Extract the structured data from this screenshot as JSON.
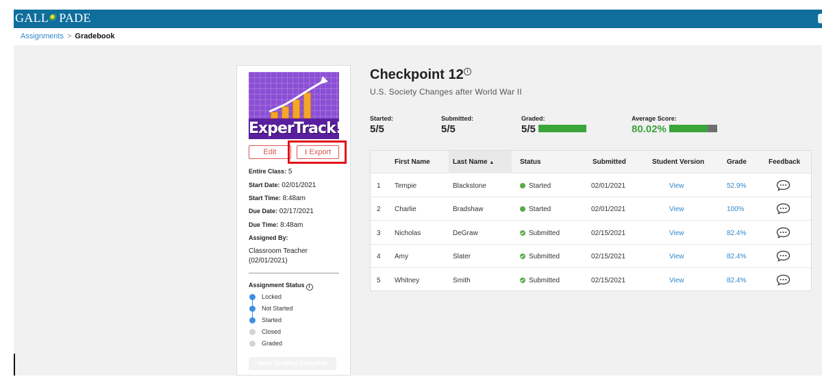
{
  "header": {
    "logo_text": "GALL",
    "logo_text_after": "PADE"
  },
  "breadcrumb": {
    "link": "Assignments",
    "separator": ">",
    "current": "Gradebook"
  },
  "assignment_card": {
    "cover_title": "ExperTrack!",
    "edit_label": "Edit",
    "export_label": "Export",
    "entire_class_label": "Entire Class:",
    "entire_class_value": "5",
    "start_date_label": "Start Date:",
    "start_date_value": "02/01/2021",
    "start_time_label": "Start Time:",
    "start_time_value": "8:48am",
    "due_date_label": "Due Date:",
    "due_date_value": "02/17/2021",
    "due_time_label": "Due Time:",
    "due_time_value": "8:48am",
    "assigned_by_label": "Assigned By:",
    "assigned_by_line1": "Classroom Teacher",
    "assigned_by_line2": "(02/01/2021)",
    "status_heading": "Assignment Status",
    "status_steps": [
      {
        "label": "Locked",
        "active": true
      },
      {
        "label": "Not Started",
        "active": true
      },
      {
        "label": "Started",
        "active": true
      },
      {
        "label": "Closed",
        "active": false
      },
      {
        "label": "Graded",
        "active": false
      }
    ],
    "complete_button_label": "Mark Grading Complete"
  },
  "main": {
    "title": "Checkpoint 12",
    "subtitle": "U.S. Society Changes after World War II",
    "stats": {
      "started_label": "Started:",
      "started_value": "5/5",
      "submitted_label": "Submitted:",
      "submitted_value": "5/5",
      "graded_label": "Graded:",
      "graded_value": "5/5",
      "graded_fraction": 1.0,
      "average_label": "Average Score:",
      "average_value": "80.02%",
      "average_fraction": 0.8002
    }
  },
  "table": {
    "columns": {
      "first_name": "First Name",
      "last_name": "Last Name",
      "status": "Status",
      "submitted": "Submitted",
      "student_version": "Student Version",
      "grade": "Grade",
      "feedback": "Feedback"
    },
    "sort_indicator": "▲",
    "rows": [
      {
        "index": "1",
        "first": "Tempie",
        "last": "Blackstone",
        "status": "Started",
        "submitted": "02/01/2021",
        "view": "View",
        "grade": "52.9%"
      },
      {
        "index": "2",
        "first": "Charlie",
        "last": "Bradshaw",
        "status": "Started",
        "submitted": "02/01/2021",
        "view": "View",
        "grade": "100%"
      },
      {
        "index": "3",
        "first": "Nicholas",
        "last": "DeGraw",
        "status": "Submitted",
        "submitted": "02/15/2021",
        "view": "View",
        "grade": "82.4%"
      },
      {
        "index": "4",
        "first": "Amy",
        "last": "Slater",
        "status": "Submitted",
        "submitted": "02/15/2021",
        "view": "View",
        "grade": "82.4%"
      },
      {
        "index": "5",
        "first": "Whitney",
        "last": "Smith",
        "status": "Submitted",
        "submitted": "02/15/2021",
        "view": "View",
        "grade": "82.4%"
      }
    ]
  },
  "colors": {
    "header_bg": "#0f6e9c",
    "accent_red": "#d9534f",
    "link_blue": "#2f86c9",
    "status_green": "#5aaa4a"
  }
}
